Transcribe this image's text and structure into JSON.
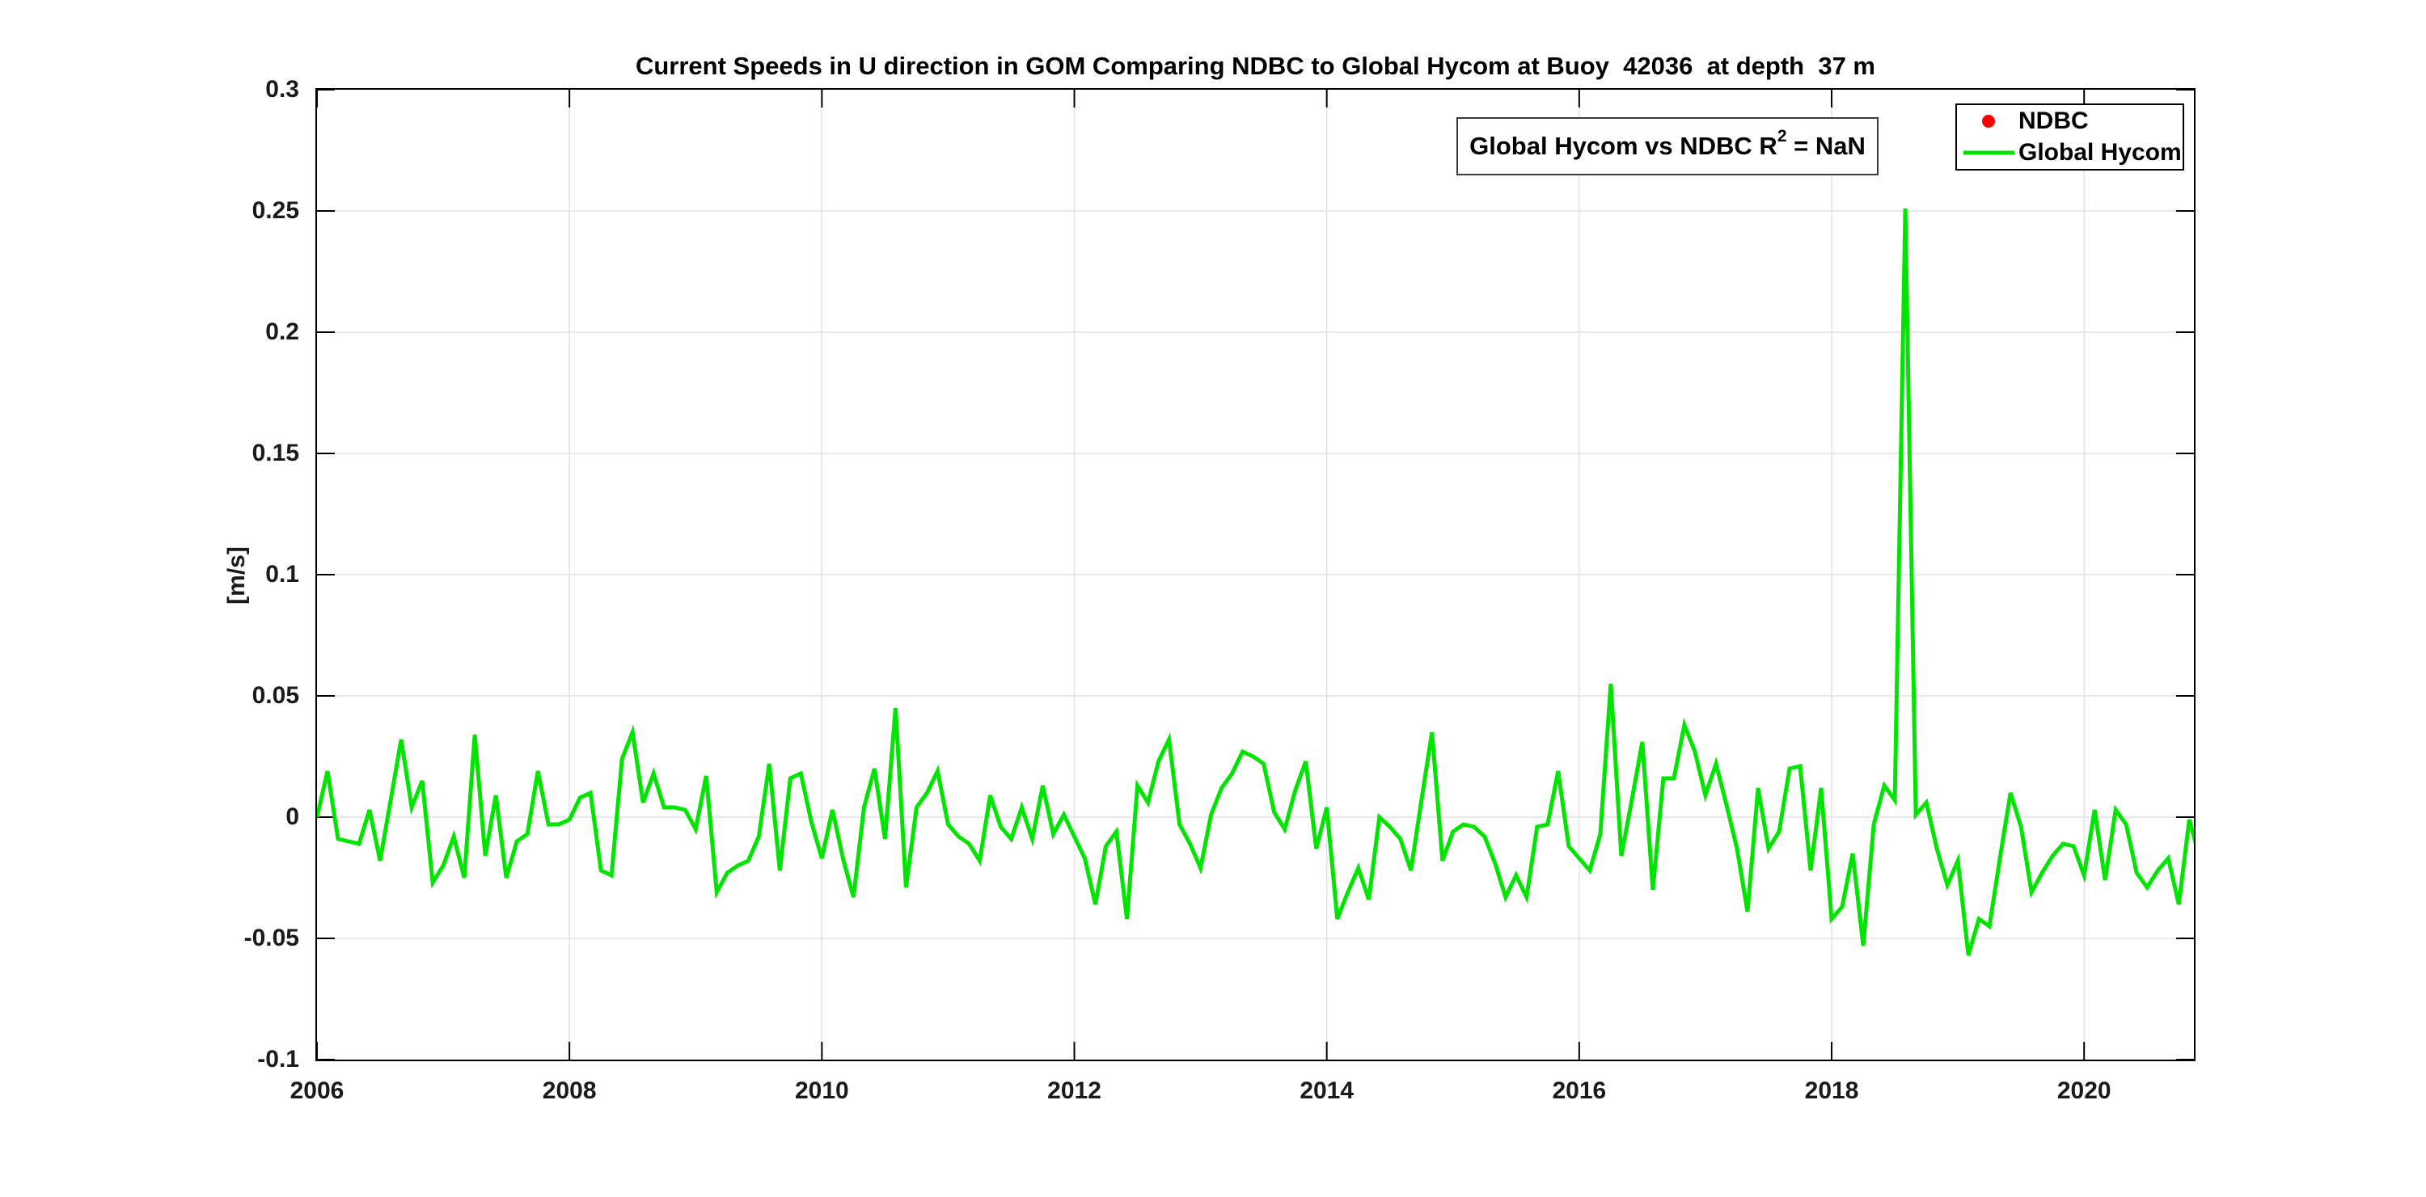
{
  "figure": {
    "background": "#ffffff",
    "axis_color": "#000000",
    "tick_label_color": "#1a1a1a"
  },
  "chart_data": {
    "type": "line",
    "title": "Current Speeds in U direction in GOM Comparing NDBC to Global Hycom at Buoy  42036  at depth  37 m",
    "xlabel": "",
    "ylabel": "[m/s]",
    "xlim": [
      2006,
      2020.87
    ],
    "ylim": [
      -0.1,
      0.3
    ],
    "grid": true,
    "grid_color": "#e2e2e2",
    "legend_position": "top-right-inside",
    "x_ticks": [
      2006,
      2008,
      2010,
      2012,
      2014,
      2016,
      2018,
      2020
    ],
    "x_tick_labels": [
      "2006",
      "2008",
      "2010",
      "2012",
      "2014",
      "2016",
      "2018",
      "2020"
    ],
    "y_ticks": [
      0.3,
      0.25,
      0.2,
      0.15,
      0.1,
      0.05,
      0,
      -0.05,
      -0.1
    ],
    "y_tick_labels": [
      "0.3",
      "0.25",
      "0.2",
      "0.15",
      "0.1",
      "0.05",
      "0",
      "-0.05",
      "-0.1"
    ],
    "series": [
      {
        "name": "NDBC",
        "marker": "dot",
        "color": "#ff0000",
        "values": []
      },
      {
        "name": "Global Hycom",
        "marker": "line",
        "color": "#00e400",
        "line_width": 5,
        "time": {
          "start_year": 2006,
          "start_month": 1,
          "interval": "monthly"
        },
        "values": [
          0,
          0.019,
          -0.009,
          -0.01,
          -0.011,
          0.003,
          -0.018,
          0.007,
          0.032,
          0.004,
          0.015,
          -0.027,
          -0.02,
          -0.008,
          -0.025,
          0.034,
          -0.016,
          0.009,
          -0.025,
          -0.01,
          -0.007,
          0.019,
          -0.003,
          -0.003,
          -0.001,
          0.008,
          0.01,
          -0.022,
          -0.024,
          0.024,
          0.035,
          0.006,
          0.018,
          0.004,
          0.004,
          0.003,
          -0.005,
          0.017,
          -0.031,
          -0.023,
          -0.02,
          -0.018,
          -0.008,
          0.022,
          -0.022,
          0.016,
          0.018,
          -0.002,
          -0.017,
          0.003,
          -0.017,
          -0.033,
          0.004,
          0.02,
          -0.009,
          0.045,
          -0.029,
          0.004,
          0.01,
          0.019,
          -0.003,
          -0.008,
          -0.011,
          -0.018,
          0.009,
          -0.004,
          -0.009,
          0.004,
          -0.009,
          0.013,
          -0.007,
          0.001,
          -0.008,
          -0.017,
          -0.036,
          -0.012,
          -0.006,
          -0.042,
          0.013,
          0.006,
          0.023,
          0.032,
          -0.003,
          -0.011,
          -0.021,
          0.001,
          0.012,
          0.018,
          0.027,
          0.025,
          0.022,
          0.002,
          -0.005,
          0.011,
          0.023,
          -0.013,
          0.004,
          -0.042,
          -0.031,
          -0.021,
          -0.034,
          0,
          -0.004,
          -0.009,
          -0.022,
          0.007,
          0.035,
          -0.018,
          -0.006,
          -0.003,
          -0.004,
          -0.008,
          -0.019,
          -0.033,
          -0.024,
          -0.033,
          -0.004,
          -0.003,
          0.019,
          -0.012,
          -0.017,
          -0.022,
          -0.007,
          0.055,
          -0.016,
          0.007,
          0.031,
          -0.03,
          0.016,
          0.016,
          0.038,
          0.027,
          0.009,
          0.022,
          0.005,
          -0.013,
          -0.039,
          0.012,
          -0.013,
          -0.006,
          0.02,
          0.021,
          -0.022,
          0.012,
          -0.042,
          -0.037,
          -0.015,
          -0.053,
          -0.003,
          0.013,
          0.007,
          0.251,
          0.001,
          0.006,
          -0.013,
          -0.028,
          -0.018,
          -0.057,
          -0.042,
          -0.045,
          -0.017,
          0.01,
          -0.004,
          -0.031,
          -0.023,
          -0.016,
          -0.011,
          -0.012,
          -0.024,
          0.003,
          -0.026,
          0.003,
          -0.003,
          -0.023,
          -0.029,
          -0.022,
          -0.017,
          -0.036,
          -0.001,
          -0.017
        ]
      }
    ]
  },
  "annotation": {
    "prefix": "Global Hycom vs NDBC R",
    "sup": "2",
    "suffix": " = NaN"
  }
}
